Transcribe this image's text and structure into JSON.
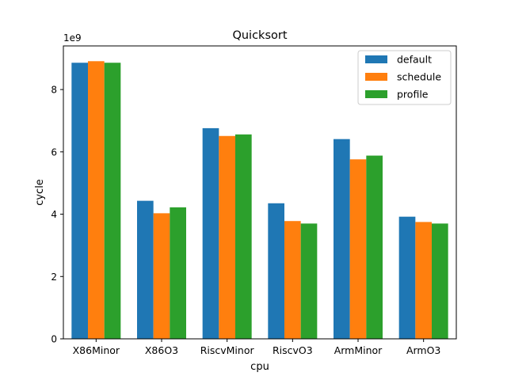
{
  "chart_data": {
    "type": "bar",
    "title": "Quicksort",
    "xlabel": "cpu",
    "ylabel": "cycle",
    "y_scale_label": "1e9",
    "ylim": [
      0,
      9.4
    ],
    "y_ticks": [
      0,
      2,
      4,
      6,
      8
    ],
    "grid": false,
    "legend_position": "top-right",
    "categories": [
      "X86Minor",
      "X86O3",
      "RiscvMinor",
      "RiscvO3",
      "ArmMinor",
      "ArmO3"
    ],
    "series": [
      {
        "name": "default",
        "color": "#1f77b4",
        "values": [
          8.86,
          4.43,
          6.76,
          4.35,
          6.41,
          3.92
        ]
      },
      {
        "name": "schedule",
        "color": "#ff7f0e",
        "values": [
          8.91,
          4.03,
          6.51,
          3.78,
          5.76,
          3.75
        ]
      },
      {
        "name": "profile",
        "color": "#2ca02c",
        "values": [
          8.86,
          4.22,
          6.56,
          3.7,
          5.88,
          3.7
        ]
      }
    ]
  }
}
